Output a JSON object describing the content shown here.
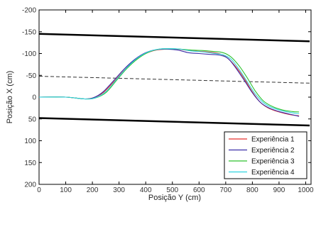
{
  "chart_data": {
    "type": "line",
    "title": "",
    "xlabel": "Posição Y (cm)",
    "ylabel": "Posição X (cm)",
    "xlim": [
      0,
      1020
    ],
    "ylim": [
      200,
      -200
    ],
    "y_axis_reversed": true,
    "grid": false,
    "legend_placement": "bottom-right",
    "x_ticks": [
      "0",
      "100",
      "200",
      "300",
      "400",
      "500",
      "600",
      "700",
      "800",
      "900",
      "1000"
    ],
    "y_ticks": [
      "-200",
      "-150",
      "-100",
      "-50",
      "0",
      "50",
      "100",
      "150",
      "200"
    ],
    "boundaries": [
      {
        "style": "solid-thick",
        "color": "#000000",
        "points": [
          [
            0,
            -145
          ],
          [
            1015,
            -128
          ]
        ]
      },
      {
        "style": "dashed",
        "color": "#333333",
        "points": [
          [
            0,
            -48
          ],
          [
            1015,
            -32
          ]
        ]
      },
      {
        "style": "solid-thick",
        "color": "#000000",
        "points": [
          [
            0,
            48
          ],
          [
            1015,
            65
          ]
        ]
      }
    ],
    "series": [
      {
        "name": "Experiência 1",
        "color": "#e8322e",
        "points": [
          [
            0,
            0
          ],
          [
            100,
            0
          ],
          [
            170,
            4
          ],
          [
            205,
            1
          ],
          [
            240,
            -10
          ],
          [
            280,
            -35
          ],
          [
            320,
            -62
          ],
          [
            360,
            -85
          ],
          [
            400,
            -100
          ],
          [
            440,
            -108
          ],
          [
            480,
            -110
          ],
          [
            520,
            -110
          ],
          [
            560,
            -107
          ],
          [
            600,
            -105
          ],
          [
            640,
            -103
          ],
          [
            680,
            -99
          ],
          [
            710,
            -88
          ],
          [
            740,
            -68
          ],
          [
            770,
            -42
          ],
          [
            800,
            -12
          ],
          [
            830,
            12
          ],
          [
            860,
            25
          ],
          [
            900,
            34
          ],
          [
            940,
            40
          ],
          [
            975,
            43
          ]
        ]
      },
      {
        "name": "Experiência 2",
        "color": "#3b2fa8",
        "points": [
          [
            0,
            0
          ],
          [
            100,
            0
          ],
          [
            170,
            4
          ],
          [
            205,
            1
          ],
          [
            240,
            -12
          ],
          [
            280,
            -38
          ],
          [
            320,
            -65
          ],
          [
            360,
            -87
          ],
          [
            400,
            -102
          ],
          [
            440,
            -109
          ],
          [
            480,
            -110
          ],
          [
            520,
            -108
          ],
          [
            560,
            -102
          ],
          [
            600,
            -100
          ],
          [
            640,
            -98
          ],
          [
            680,
            -96
          ],
          [
            710,
            -88
          ],
          [
            740,
            -65
          ],
          [
            770,
            -38
          ],
          [
            800,
            -10
          ],
          [
            830,
            12
          ],
          [
            860,
            24
          ],
          [
            900,
            33
          ],
          [
            940,
            39
          ],
          [
            975,
            44
          ]
        ]
      },
      {
        "name": "Experiência 3",
        "color": "#2ec22e",
        "points": [
          [
            0,
            0
          ],
          [
            100,
            0
          ],
          [
            170,
            4
          ],
          [
            210,
            2
          ],
          [
            250,
            -10
          ],
          [
            290,
            -38
          ],
          [
            330,
            -66
          ],
          [
            370,
            -88
          ],
          [
            410,
            -103
          ],
          [
            450,
            -110
          ],
          [
            490,
            -111
          ],
          [
            530,
            -110
          ],
          [
            570,
            -108
          ],
          [
            610,
            -107
          ],
          [
            650,
            -105
          ],
          [
            690,
            -102
          ],
          [
            720,
            -92
          ],
          [
            750,
            -72
          ],
          [
            780,
            -45
          ],
          [
            810,
            -15
          ],
          [
            840,
            8
          ],
          [
            870,
            20
          ],
          [
            910,
            29
          ],
          [
            950,
            33
          ],
          [
            975,
            34
          ]
        ]
      },
      {
        "name": "Experiência 4",
        "color": "#2fd3e0",
        "points": [
          [
            0,
            0
          ],
          [
            100,
            0
          ],
          [
            170,
            4
          ],
          [
            210,
            2
          ],
          [
            250,
            -12
          ],
          [
            290,
            -40
          ],
          [
            330,
            -68
          ],
          [
            370,
            -90
          ],
          [
            410,
            -104
          ],
          [
            450,
            -110
          ],
          [
            490,
            -111
          ],
          [
            530,
            -110
          ],
          [
            570,
            -106
          ],
          [
            610,
            -104
          ],
          [
            650,
            -101
          ],
          [
            690,
            -97
          ],
          [
            720,
            -87
          ],
          [
            750,
            -64
          ],
          [
            780,
            -36
          ],
          [
            810,
            -8
          ],
          [
            840,
            12
          ],
          [
            870,
            23
          ],
          [
            910,
            31
          ],
          [
            950,
            36
          ],
          [
            975,
            38
          ]
        ]
      }
    ]
  }
}
